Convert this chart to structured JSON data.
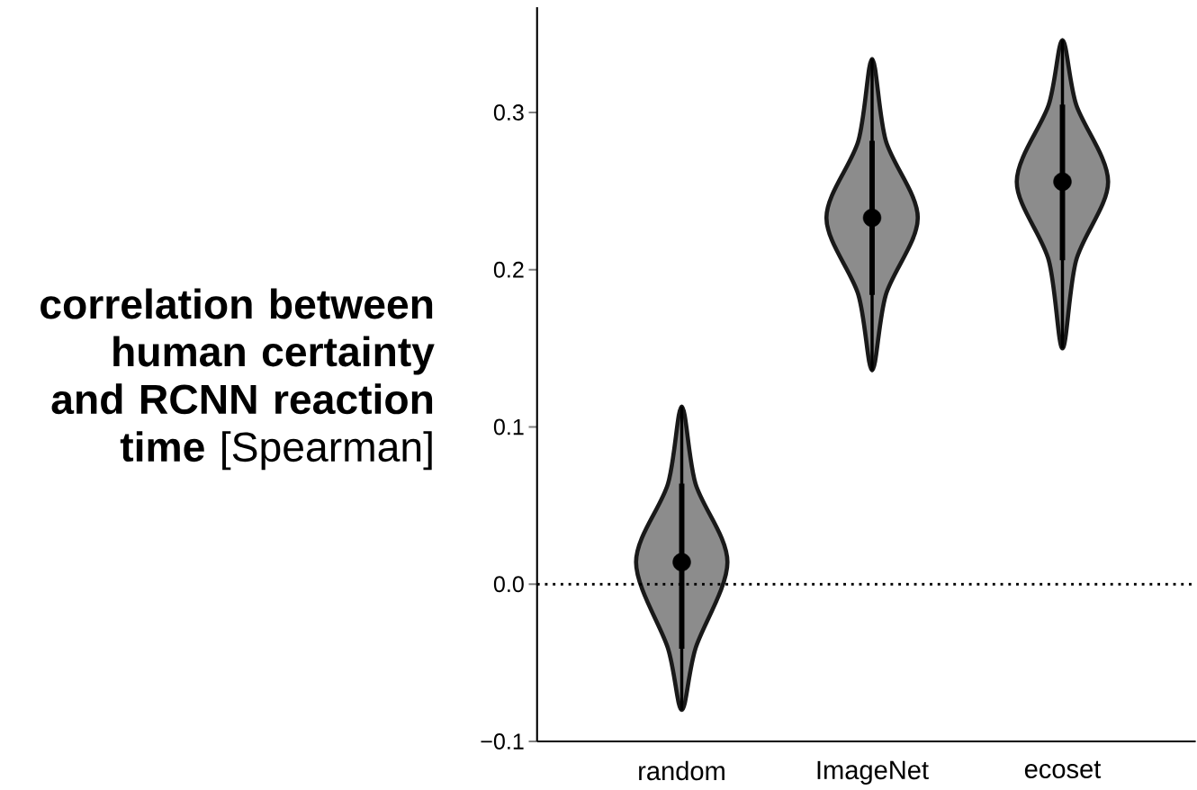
{
  "chart_data": {
    "type": "box",
    "categories": [
      "random",
      "ImageNet",
      "ecoset"
    ],
    "boxes": [
      {
        "low": -0.08,
        "q1": -0.041,
        "median": 0.014,
        "q3": 0.064,
        "high": 0.113
      },
      {
        "low": 0.136,
        "q1": 0.184,
        "median": 0.233,
        "q3": 0.282,
        "high": 0.334
      },
      {
        "low": 0.15,
        "q1": 0.206,
        "median": 0.256,
        "q3": 0.305,
        "high": 0.346
      }
    ],
    "color": "#000000",
    "ylabel": "**correlation between human certainty and RCNN reaction time** [Spearman]",
    "ylim": [
      -0.1,
      0.367
    ],
    "yticks": [
      {
        "value": -0.1,
        "label": "−0.1"
      },
      {
        "value": 0,
        "label": "0.0"
      },
      0.1,
      0.2,
      0.3
    ],
    "ref_lines": [
      {
        "axis": "y",
        "value": 0,
        "line_style": "dotted"
      }
    ]
  }
}
